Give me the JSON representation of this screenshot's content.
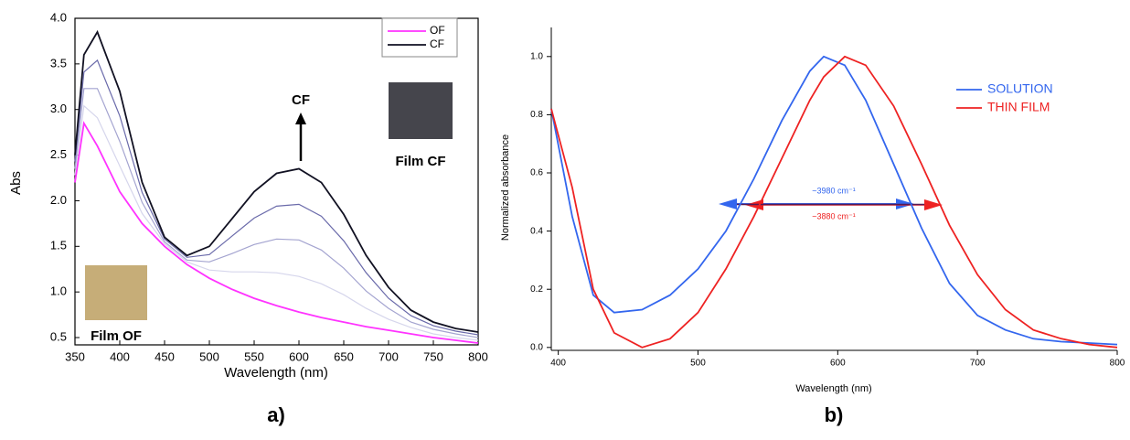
{
  "chart_data": [
    {
      "type": "line",
      "panel_label": "a)",
      "x_label": "Wavelength (nm)",
      "y_label": "Abs",
      "x": [
        350,
        360,
        375,
        400,
        425,
        450,
        475,
        500,
        525,
        550,
        575,
        600,
        625,
        650,
        675,
        700,
        725,
        750,
        775,
        800
      ],
      "series": [
        {
          "name": "OF",
          "color": "#ff33ff",
          "values": [
            2.2,
            2.85,
            2.6,
            2.1,
            1.75,
            1.5,
            1.3,
            1.15,
            1.03,
            0.93,
            0.85,
            0.78,
            0.72,
            0.67,
            0.62,
            0.58,
            0.54,
            0.5,
            0.47,
            0.44
          ]
        },
        {
          "name": "CF",
          "color": "#111122",
          "values": [
            2.5,
            3.6,
            3.85,
            3.2,
            2.2,
            1.6,
            1.4,
            1.5,
            1.8,
            2.1,
            2.3,
            2.35,
            2.2,
            1.85,
            1.4,
            1.05,
            0.8,
            0.67,
            0.6,
            0.56
          ]
        },
        {
          "color": "#d6d6ec",
          "values": [
            2.28,
            3.04,
            2.91,
            2.38,
            1.86,
            1.53,
            1.33,
            1.24,
            1.22,
            1.22,
            1.21,
            1.17,
            1.09,
            0.97,
            0.82,
            0.7,
            0.61,
            0.54,
            0.5,
            0.47
          ]
        },
        {
          "color": "#a4a4d0",
          "values": [
            2.35,
            3.23,
            3.23,
            2.65,
            1.98,
            1.55,
            1.35,
            1.33,
            1.42,
            1.52,
            1.58,
            1.57,
            1.46,
            1.26,
            1.01,
            0.82,
            0.67,
            0.59,
            0.54,
            0.5
          ]
        },
        {
          "color": "#6a6aaa",
          "values": [
            2.43,
            3.41,
            3.54,
            2.93,
            2.09,
            1.58,
            1.38,
            1.41,
            1.61,
            1.81,
            1.94,
            1.96,
            1.83,
            1.56,
            1.21,
            0.93,
            0.74,
            0.63,
            0.57,
            0.53
          ]
        }
      ],
      "annotations": [
        "CF",
        "Film CF",
        "Film OF"
      ],
      "xlim": [
        350,
        800
      ],
      "xticks": [
        350,
        400,
        450,
        500,
        550,
        600,
        650,
        700,
        750,
        800
      ],
      "ylim": [
        0.42,
        4.0
      ],
      "yticks": [
        0.5,
        {
          "value": 1,
          "label": "1.0"
        },
        1.5,
        {
          "value": 2,
          "label": "2.0"
        },
        2.5,
        {
          "value": 3,
          "label": "3.0"
        },
        3.5,
        {
          "value": 4,
          "label": "4.0"
        }
      ],
      "legend": "upper right",
      "frame": true,
      "tick_direction": "in"
    },
    {
      "type": "line",
      "panel_label": "b)",
      "x_label": "Wavelength (nm)",
      "y_label": "Normalized absorbance",
      "x": [
        395,
        410,
        425,
        440,
        460,
        480,
        500,
        520,
        540,
        560,
        580,
        590,
        605,
        620,
        640,
        660,
        680,
        700,
        720,
        740,
        760,
        780,
        800
      ],
      "series": [
        {
          "name": "SOLUTION",
          "color": "#3366ee",
          "values": [
            0.82,
            0.45,
            0.18,
            0.12,
            0.13,
            0.18,
            0.27,
            0.4,
            0.58,
            0.78,
            0.95,
            1.0,
            0.97,
            0.85,
            0.63,
            0.41,
            0.22,
            0.11,
            0.06,
            0.03,
            0.02,
            0.015,
            0.01
          ]
        },
        {
          "name": "THIN FILM",
          "color": "#ee2222",
          "values": [
            0.82,
            0.55,
            0.2,
            0.05,
            0.0,
            0.03,
            0.12,
            0.27,
            0.45,
            0.65,
            0.85,
            0.93,
            1.0,
            0.97,
            0.83,
            0.63,
            0.42,
            0.25,
            0.13,
            0.06,
            0.03,
            0.01,
            0.0
          ]
        }
      ],
      "annotations": [
        "~3980 cm⁻¹",
        "~3880 cm⁻¹"
      ],
      "xlim": [
        395,
        800
      ],
      "xticks": [
        400,
        500,
        600,
        700,
        800
      ],
      "ylim": [
        -0.01,
        1.1
      ],
      "yticks": [
        {
          "value": 0,
          "label": "0.0"
        },
        0.2,
        0.4,
        0.6,
        0.8,
        {
          "value": 1,
          "label": "1.0"
        }
      ],
      "legend": "upper right",
      "frame": false,
      "tick_direction": "out"
    }
  ]
}
